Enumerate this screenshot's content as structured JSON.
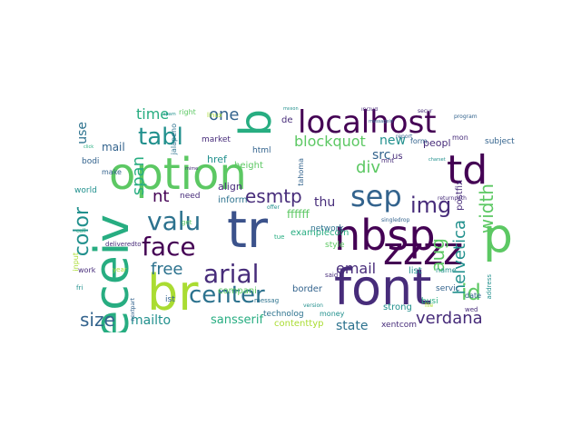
{
  "palette": {
    "dark_purple": "#440154",
    "indigo": "#472c7a",
    "blue": "#3b528b",
    "slate": "#33638d",
    "teal_blue": "#2c728e",
    "teal": "#21908d",
    "green_teal": "#27ad81",
    "green": "#5cc863",
    "lime": "#aadc32",
    "yellow": "#fde725"
  },
  "words": {
    "receiv": "receiv",
    "option": "option",
    "font": "font",
    "nbsp": "nbsp",
    "br": "br",
    "td": "td",
    "localhost": "localhost",
    "tr": "tr",
    "p": "p",
    "zzzz": "zzzz",
    "b": "b",
    "sep": "sep",
    "center": "center",
    "face": "face",
    "arial": "arial",
    "valu": "valu",
    "img": "img",
    "tabl": "tabl",
    "id": "id",
    "esmtp": "esmtp",
    "email": "email",
    "width": "width",
    "color": "color",
    "verdana": "verdana",
    "size": "size",
    "span": "span",
    "aug": "aug",
    "helvetica": "helvetica",
    "free": "free",
    "one": "one",
    "div": "div",
    "blockquot": "blockquot",
    "mailto": "mailto",
    "sansserif": "sansserif",
    "time": "time",
    "nt": "nt",
    "new": "new",
    "thu": "thu",
    "src": "src",
    "us": "us",
    "state": "state",
    "ffffff": "ffffff",
    "use": "use",
    "list": "list",
    "examplecom": "examplecom",
    "xentcom": "xentcom",
    "companis": "compani",
    "contenttyp": "contenttyp",
    "mail": "mail",
    "href": "href",
    "market": "market",
    "html": "html",
    "de": "de",
    "peopl": "peopl",
    "subject": "subject",
    "postfix": "postfix",
    "strong": "strong",
    "busi": "busi",
    "servic": "servic",
    "date": "date",
    "border": "border",
    "network": "network",
    "style": "style",
    "align": "align",
    "inform": "inform",
    "height": "height",
    "technolog": "technolog",
    "mon": "mon",
    "form": "form",
    "right": "right",
    "jalapeno": "jalapeno",
    "bodi": "bodi",
    "make": "make",
    "world": "world",
    "deliveredto": "deliveredto",
    "need": "need",
    "ist": "ist",
    "tue": "tue",
    "messag": "messag",
    "money": "money",
    "said": "said",
    "name": "name",
    "address": "address",
    "wed": "wed",
    "report": "report",
    "linux": "linux",
    "mnt": "mnt",
    "tahoma": "tahoma",
    "input": "input",
    "returnpath": "returnpath",
    "singledrop": "singledrop",
    "work": "work",
    "year": "year",
    "fri": "fri",
    "get": "get",
    "file": "file",
    "nextpart": "nextpart",
    "version": "version",
    "program": "program",
    "includ": "includ",
    "million": "million",
    "messageid": "messageid",
    "secur": "secur",
    "spam": "spam",
    "click": "click",
    "charset": "charset",
    "mime": "mime",
    "call": "call",
    "offer": "offer"
  }
}
